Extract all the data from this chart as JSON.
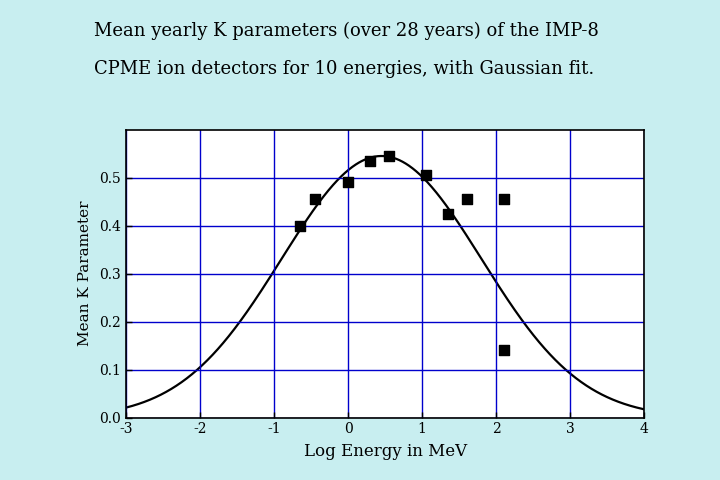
{
  "title_line1": "Mean yearly K parameters (over 28 years) of the IMP-8",
  "title_line2": "CPME ion detectors for 10 energies, with Gaussian fit.",
  "title_fontsize": 13,
  "xlabel": "Log Energy in MeV",
  "ylabel": "Mean K Parameter",
  "xlabel_fontsize": 12,
  "ylabel_fontsize": 11,
  "xlim": [
    -3,
    4
  ],
  "ylim": [
    0,
    0.6
  ],
  "xticks": [
    -3,
    -2,
    -1,
    0,
    1,
    2,
    3,
    4
  ],
  "yticks": [
    0,
    0.1,
    0.2,
    0.3,
    0.4,
    0.5
  ],
  "data_x": [
    -0.65,
    -0.45,
    0.0,
    0.3,
    0.55,
    1.05,
    1.35,
    1.6,
    2.1,
    2.1
  ],
  "data_y": [
    0.4,
    0.455,
    0.49,
    0.535,
    0.545,
    0.505,
    0.425,
    0.455,
    0.455,
    0.14
  ],
  "gauss_amplitude": 0.545,
  "gauss_mean": 0.45,
  "gauss_sigma": 1.35,
  "curve_color": "#000000",
  "dot_color": "#000000",
  "grid_color": "#0000cc",
  "background_color": "#c8eef0",
  "plot_bg_color": "#ffffff",
  "spine_color": "#000000",
  "marker_size": 7,
  "curve_linewidth": 1.6,
  "font_family": "DejaVu Serif"
}
